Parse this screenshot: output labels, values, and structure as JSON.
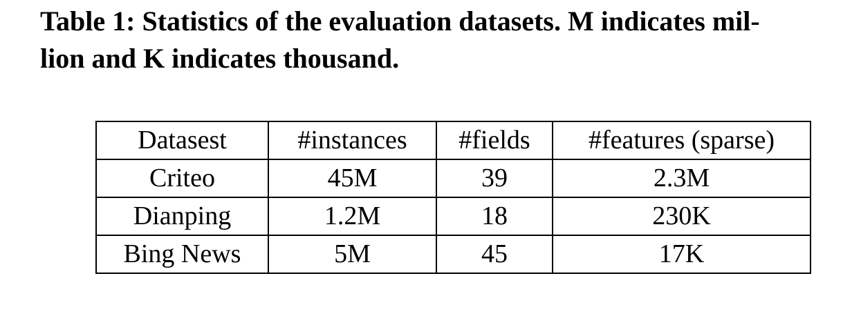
{
  "caption": {
    "line1": "Table 1: Statistics of the evaluation datasets. M indicates mil-",
    "line2": "lion and K indicates thousand."
  },
  "table": {
    "headers": [
      "Datasest",
      "#instances",
      "#fields",
      "#features (sparse)"
    ],
    "rows": [
      [
        "Criteo",
        "45M",
        "39",
        "2.3M"
      ],
      [
        "Dianping",
        "1.2M",
        "18",
        "230K"
      ],
      [
        "Bing News",
        "5M",
        "45",
        "17K"
      ]
    ]
  }
}
